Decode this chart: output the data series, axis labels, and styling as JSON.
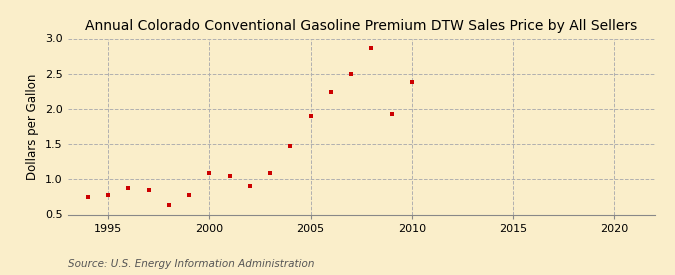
{
  "title": "Annual Colorado Conventional Gasoline Premium DTW Sales Price by All Sellers",
  "ylabel": "Dollars per Gallon",
  "source": "Source: U.S. Energy Information Administration",
  "years": [
    1994,
    1995,
    1996,
    1997,
    1998,
    1999,
    2000,
    2001,
    2002,
    2003,
    2004,
    2005,
    2006,
    2007,
    2008,
    2009,
    2010
  ],
  "values": [
    0.752,
    0.77,
    0.872,
    0.852,
    0.63,
    0.778,
    1.09,
    1.052,
    0.91,
    1.09,
    1.47,
    1.9,
    2.24,
    2.5,
    2.86,
    1.93,
    2.38
  ],
  "marker_color": "#cc0000",
  "marker": "s",
  "marker_size": 3.5,
  "xlim": [
    1993,
    2022
  ],
  "ylim": [
    0.5,
    3.0
  ],
  "yticks": [
    0.5,
    1.0,
    1.5,
    2.0,
    2.5,
    3.0
  ],
  "xticks": [
    1995,
    2000,
    2005,
    2010,
    2015,
    2020
  ],
  "grid_color": "#b0b0b0",
  "bg_color": "#faeeca",
  "ax_bg_color": "#faeeca",
  "title_fontsize": 10,
  "label_fontsize": 8.5,
  "tick_fontsize": 8,
  "source_fontsize": 7.5
}
